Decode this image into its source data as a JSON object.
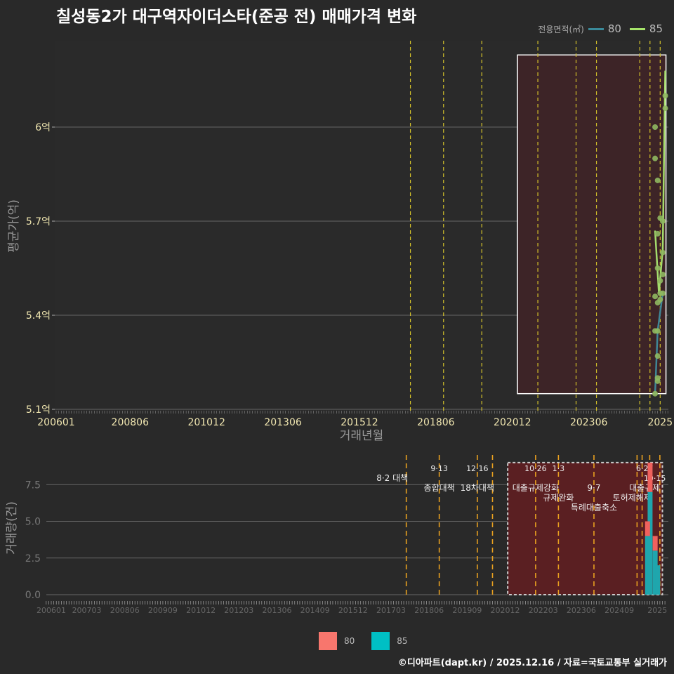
{
  "title": "칠성동2가 대구역자이더스타(준공 전) 매매가격 변화",
  "legend": {
    "title": "전용면적(㎡)",
    "items": [
      {
        "label": "80",
        "color": "#3a8a9a"
      },
      {
        "label": "85",
        "color": "#a6e46a"
      }
    ]
  },
  "bar_legend": {
    "items": [
      {
        "label": "80",
        "color": "#f8766d"
      },
      {
        "label": "85",
        "color": "#00bfc4"
      }
    ]
  },
  "footer": "©디아파트(dapt.kr) / 2025.12.16 / 자료=국토교통부 실거래가",
  "chart_data": [
    {
      "type": "line",
      "title": "칠성동2가 대구역자이더스타(준공 전) 매매가격 변화",
      "xlabel": "거래년월",
      "ylabel": "평균가(억)",
      "ylim": [
        5.1,
        6.2
      ],
      "yticks": [
        {
          "v": 5.1,
          "label": "5.1억"
        },
        {
          "v": 5.4,
          "label": "5.4억"
        },
        {
          "v": 5.7,
          "label": "5.7억"
        },
        {
          "v": 6.0,
          "label": "6억"
        }
      ],
      "xticks": [
        {
          "m": 0,
          "label": "200601"
        },
        {
          "m": 29,
          "label": "200806"
        },
        {
          "m": 59,
          "label": "201012"
        },
        {
          "m": 89,
          "label": "201306"
        },
        {
          "m": 119,
          "label": "201512"
        },
        {
          "m": 149,
          "label": "201806"
        },
        {
          "m": 179,
          "label": "202012"
        },
        {
          "m": 209,
          "label": "202306"
        },
        {
          "m": 237,
          "label": "2025"
        }
      ],
      "vlines": [
        139,
        152,
        167,
        189,
        204,
        212,
        229,
        233,
        237
      ],
      "highlight": {
        "from": 181,
        "to": 239,
        "ymin": 5.15,
        "ymax": 6.23
      },
      "series": [
        {
          "name": "80",
          "color": "#3f8696",
          "line": [
            [
              235,
              5.15
            ],
            [
              236,
              5.35
            ],
            [
              238,
              5.47
            ]
          ],
          "points": [
            [
              235,
              5.15
            ],
            [
              236,
              5.19
            ],
            [
              236,
              5.2
            ],
            [
              236,
              5.27
            ],
            [
              235,
              5.35
            ],
            [
              236,
              5.35
            ],
            [
              238,
              5.47
            ]
          ]
        },
        {
          "name": "85",
          "color": "#a3dc6c",
          "line": [
            [
              235,
              5.67
            ],
            [
              236.5,
              5.47
            ],
            [
              238,
              5.61
            ],
            [
              239,
              6.18
            ]
          ],
          "points": [
            [
              235,
              6.0
            ],
            [
              235,
              5.9
            ],
            [
              236,
              5.83
            ],
            [
              239,
              6.1
            ],
            [
              239,
              6.06
            ],
            [
              237,
              5.71
            ],
            [
              238,
              5.7
            ],
            [
              236,
              5.66
            ],
            [
              238,
              5.6
            ],
            [
              236,
              5.55
            ],
            [
              238,
              5.53
            ],
            [
              237,
              5.51
            ],
            [
              237,
              5.47
            ],
            [
              235,
              5.46
            ],
            [
              236,
              5.44
            ],
            [
              237,
              5.45
            ]
          ]
        }
      ]
    },
    {
      "type": "bar",
      "ylabel": "거래량(건)",
      "ylim": [
        0,
        9
      ],
      "yticks": [
        {
          "v": 0,
          "label": "0.0"
        },
        {
          "v": 2.5,
          "label": "2.5"
        },
        {
          "v": 5,
          "label": "5.0"
        },
        {
          "v": 7.5,
          "label": "7.5"
        }
      ],
      "xticks": [
        {
          "m": 0,
          "label": "200601"
        },
        {
          "m": 14,
          "label": "200703"
        },
        {
          "m": 29,
          "label": "200806"
        },
        {
          "m": 44,
          "label": "200909"
        },
        {
          "m": 59,
          "label": "201012"
        },
        {
          "m": 74,
          "label": "201203"
        },
        {
          "m": 89,
          "label": "201306"
        },
        {
          "m": 104,
          "label": "201409"
        },
        {
          "m": 119,
          "label": "201512"
        },
        {
          "m": 134,
          "label": "201703"
        },
        {
          "m": 149,
          "label": "201806"
        },
        {
          "m": 164,
          "label": "201909"
        },
        {
          "m": 179,
          "label": "202012"
        },
        {
          "m": 194,
          "label": "202203"
        },
        {
          "m": 209,
          "label": "202306"
        },
        {
          "m": 224,
          "label": "202409"
        },
        {
          "m": 239,
          "label": "2025"
        }
      ],
      "vlines": [
        140,
        153,
        168,
        174,
        191,
        200,
        214,
        231,
        233,
        236,
        240
      ],
      "highlight": {
        "from": 180,
        "to": 241,
        "ymin": 0,
        "ymax": 9
      },
      "annotations": [
        {
          "m": 140,
          "row": 1,
          "label": "8·2 대책",
          "dx": -20
        },
        {
          "m": 153,
          "row": 0,
          "label": "9·13"
        },
        {
          "m": 153,
          "row": 2,
          "label": "종합대책"
        },
        {
          "m": 168,
          "row": 0,
          "label": "12·16"
        },
        {
          "m": 168,
          "row": 2,
          "label": "18차대책"
        },
        {
          "m": 191,
          "row": 0,
          "label": "10·26"
        },
        {
          "m": 191,
          "row": 2,
          "label": "대출규제강화"
        },
        {
          "m": 200,
          "row": 0,
          "label": "1·3"
        },
        {
          "m": 200,
          "row": 2,
          "label": "규제완화"
        },
        {
          "m": 214,
          "row": 2,
          "label": "9·7"
        },
        {
          "m": 214,
          "row": 3,
          "label": "특례대출축소"
        },
        {
          "m": 229,
          "row": 3,
          "label": "토허제해제"
        },
        {
          "m": 234,
          "row": 0,
          "label": "6·27"
        },
        {
          "m": 234,
          "row": 2,
          "label": "대출규제"
        },
        {
          "m": 238,
          "row": 0,
          "label": "10·15"
        }
      ],
      "series": [
        {
          "name": "85",
          "color": "#1fa6ad",
          "values": [
            [
              235,
              4
            ],
            [
              236,
              7
            ],
            [
              238,
              3
            ],
            [
              239,
              2
            ]
          ]
        },
        {
          "name": "80",
          "color": "#f0615d",
          "values": [
            [
              235,
              1
            ],
            [
              236,
              2
            ],
            [
              238,
              1
            ],
            [
              239,
              0
            ]
          ]
        }
      ]
    }
  ]
}
